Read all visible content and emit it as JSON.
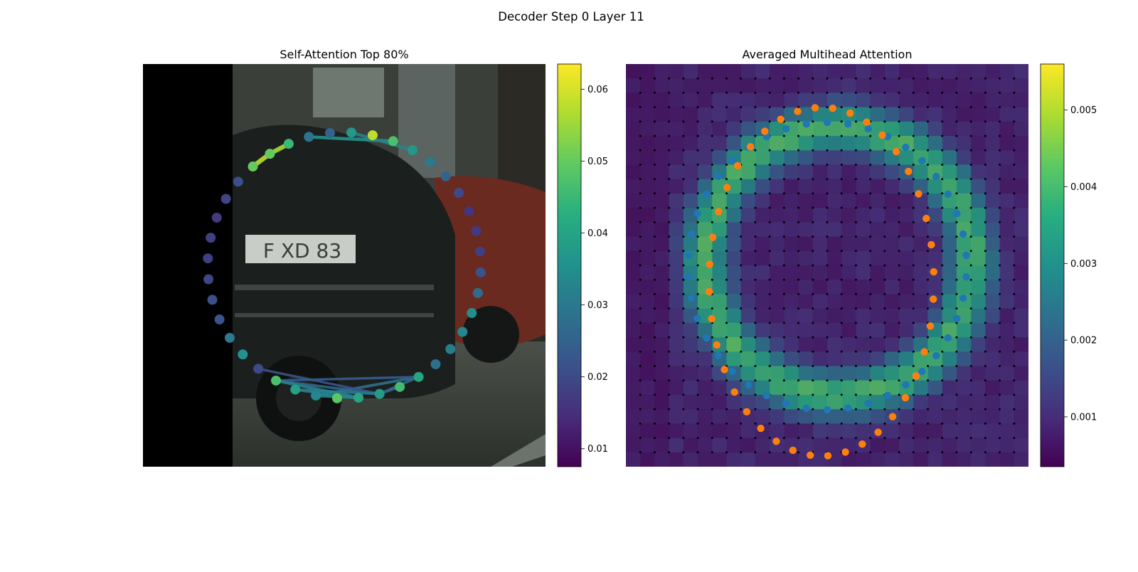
{
  "figure": {
    "suptitle": "Decoder Step 0 Layer 11"
  },
  "chart_data": [
    {
      "type": "scatter",
      "title": "Self-Attention Top 80%",
      "colorbar": {
        "colormap": "viridis",
        "range": [
          0.0075,
          0.0635
        ],
        "ticks": [
          "0.01",
          "0.02",
          "0.03",
          "0.04",
          "0.05",
          "0.06"
        ]
      },
      "points": [
        {
          "v": 0.05
        },
        {
          "v": 0.05
        },
        {
          "v": 0.045
        },
        {
          "v": 0.029
        },
        {
          "v": 0.025
        },
        {
          "v": 0.037
        },
        {
          "v": 0.058
        },
        {
          "v": 0.047
        },
        {
          "v": 0.037
        },
        {
          "v": 0.03
        },
        {
          "v": 0.025
        },
        {
          "v": 0.02
        },
        {
          "v": 0.016
        },
        {
          "v": 0.017
        },
        {
          "v": 0.018
        },
        {
          "v": 0.022
        },
        {
          "v": 0.027
        },
        {
          "v": 0.035
        },
        {
          "v": 0.033
        },
        {
          "v": 0.031
        },
        {
          "v": 0.028
        },
        {
          "v": 0.04
        },
        {
          "v": 0.046
        },
        {
          "v": 0.038
        },
        {
          "v": 0.04
        },
        {
          "v": 0.049
        },
        {
          "v": 0.033
        },
        {
          "v": 0.039
        },
        {
          "v": 0.047
        },
        {
          "v": 0.02
        },
        {
          "v": 0.036
        },
        {
          "v": 0.03
        },
        {
          "v": 0.022
        },
        {
          "v": 0.021
        },
        {
          "v": 0.019
        },
        {
          "v": 0.018
        },
        {
          "v": 0.018
        },
        {
          "v": 0.017
        },
        {
          "v": 0.019
        },
        {
          "v": 0.021
        }
      ],
      "links": [
        {
          "from": 0,
          "to": 1,
          "v": 0.058
        },
        {
          "from": 1,
          "to": 2,
          "v": 0.056
        },
        {
          "from": 3,
          "to": 7,
          "v": 0.036
        },
        {
          "from": 5,
          "to": 8,
          "v": 0.032
        },
        {
          "from": 21,
          "to": 26,
          "v": 0.028
        },
        {
          "from": 21,
          "to": 23,
          "v": 0.027
        },
        {
          "from": 28,
          "to": 23,
          "v": 0.026
        },
        {
          "from": 29,
          "to": 23,
          "v": 0.022
        },
        {
          "from": 21,
          "to": 28,
          "v": 0.024
        },
        {
          "from": 27,
          "to": 23,
          "v": 0.03
        },
        {
          "from": 27,
          "to": 24,
          "v": 0.031
        },
        {
          "from": 22,
          "to": 23,
          "v": 0.025
        },
        {
          "from": 26,
          "to": 24,
          "v": 0.034
        },
        {
          "from": 28,
          "to": 24,
          "v": 0.032
        }
      ]
    },
    {
      "type": "heatmap",
      "title": "Averaged Multihead Attention",
      "colorbar": {
        "colormap": "viridis",
        "range": [
          0.00035,
          0.0056
        ],
        "ticks": [
          "0.001",
          "0.002",
          "0.003",
          "0.004",
          "0.005"
        ]
      },
      "grid_size": 28,
      "series": [
        {
          "color": "#1f77b4"
        },
        {
          "color": "#ff7f0e"
        },
        {
          "color": "#000000"
        }
      ]
    }
  ]
}
